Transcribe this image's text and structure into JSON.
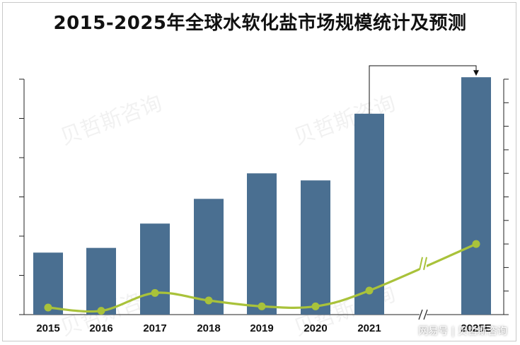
{
  "title": "2015-2025年全球水软化盐市场规模统计及预测",
  "footer": "网易号 | 贝哲斯咨询",
  "watermark": "贝哲斯咨询",
  "colors": {
    "bar": "#4a6f91",
    "line": "#a9c23a",
    "axis": "#222222"
  },
  "chart_data": {
    "type": "bar",
    "categories": [
      "2015",
      "2016",
      "2017",
      "2018",
      "2019",
      "2020",
      "2021",
      "2025E"
    ],
    "series": [
      {
        "type": "bar",
        "values": [
          1.58,
          1.7,
          2.32,
          2.95,
          3.6,
          3.42,
          5.12,
          6.05
        ]
      },
      {
        "type": "line",
        "values": [
          0.3,
          0.16,
          0.92,
          0.6,
          0.35,
          0.35,
          1.02,
          3.0
        ]
      }
    ],
    "ylim_left": [
      0,
      6
    ],
    "ylim_right": [
      0,
      10
    ],
    "axis_break_after": "2021",
    "annotation": "arrow from 2021 bar to 2025E bar"
  }
}
